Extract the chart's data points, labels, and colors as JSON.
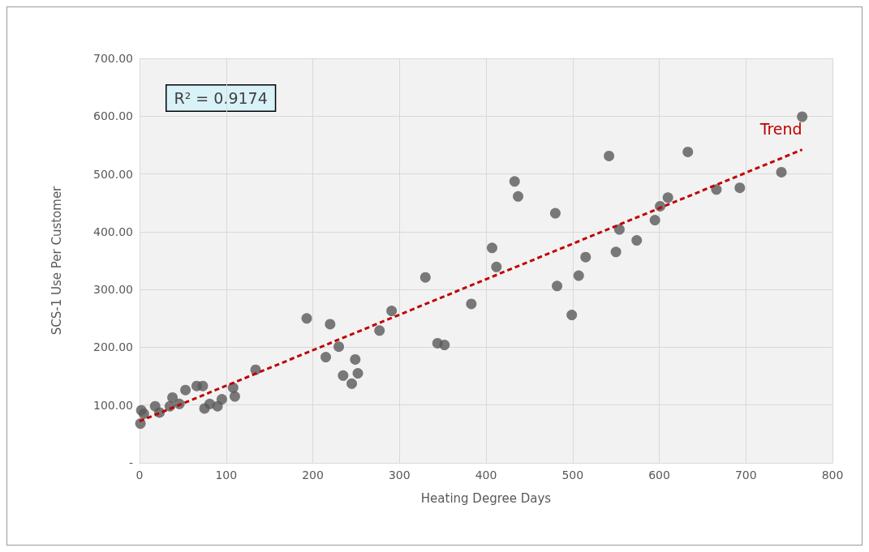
{
  "chart_data": {
    "type": "scatter",
    "xlabel": "Heating Degree Days",
    "ylabel": "SCS-1 Use Per Customer",
    "annotations": [
      "R² = 0.9174"
    ],
    "xlim": [
      0,
      800
    ],
    "xticks": [
      0,
      100,
      200,
      300,
      400,
      500,
      600,
      700,
      800
    ],
    "ylim": [
      0,
      700
    ],
    "yticks": [
      {
        "value": 0,
        "label": "-"
      },
      {
        "value": 100,
        "label": "100.00"
      },
      {
        "value": 200,
        "label": "200.00"
      },
      {
        "value": 300,
        "label": "300.00"
      },
      {
        "value": 400,
        "label": "400.00"
      },
      {
        "value": 500,
        "label": "500.00"
      },
      {
        "value": 600,
        "label": "600.00"
      },
      {
        "value": 700,
        "label": "700.00"
      }
    ],
    "grid": true,
    "legend": false,
    "marker": "circle",
    "series": [
      {
        "type": "scatter",
        "color": "#595959",
        "x": [
          765,
          741,
          693,
          666,
          633,
          610,
          601,
          595,
          574,
          554,
          550,
          515,
          507,
          482,
          499,
          480,
          542,
          433,
          437,
          407,
          412,
          330,
          383,
          291,
          277,
          220,
          193,
          344,
          352,
          230,
          215,
          249,
          235,
          252,
          245,
          134,
          108,
          110,
          95,
          90,
          81,
          75,
          66,
          73,
          53,
          38,
          46,
          35,
          23,
          18,
          2,
          1,
          5
        ],
        "values": [
          599,
          503,
          476,
          473,
          538,
          459,
          444,
          420,
          385,
          404,
          365,
          356,
          324,
          306,
          256,
          432,
          531,
          487,
          461,
          372,
          339,
          321,
          275,
          263,
          229,
          240,
          250,
          207,
          204,
          201,
          183,
          179,
          151,
          155,
          137,
          161,
          130,
          115,
          110,
          98,
          102,
          94,
          133,
          133,
          126,
          113,
          102,
          98,
          87,
          98,
          91,
          68,
          85
        ]
      },
      {
        "type": "line",
        "name": "Trend",
        "color": "#c00000",
        "line_style": "dashed",
        "marker": "none",
        "x": [
          0,
          765
        ],
        "values": [
          72,
          542
        ]
      }
    ]
  }
}
